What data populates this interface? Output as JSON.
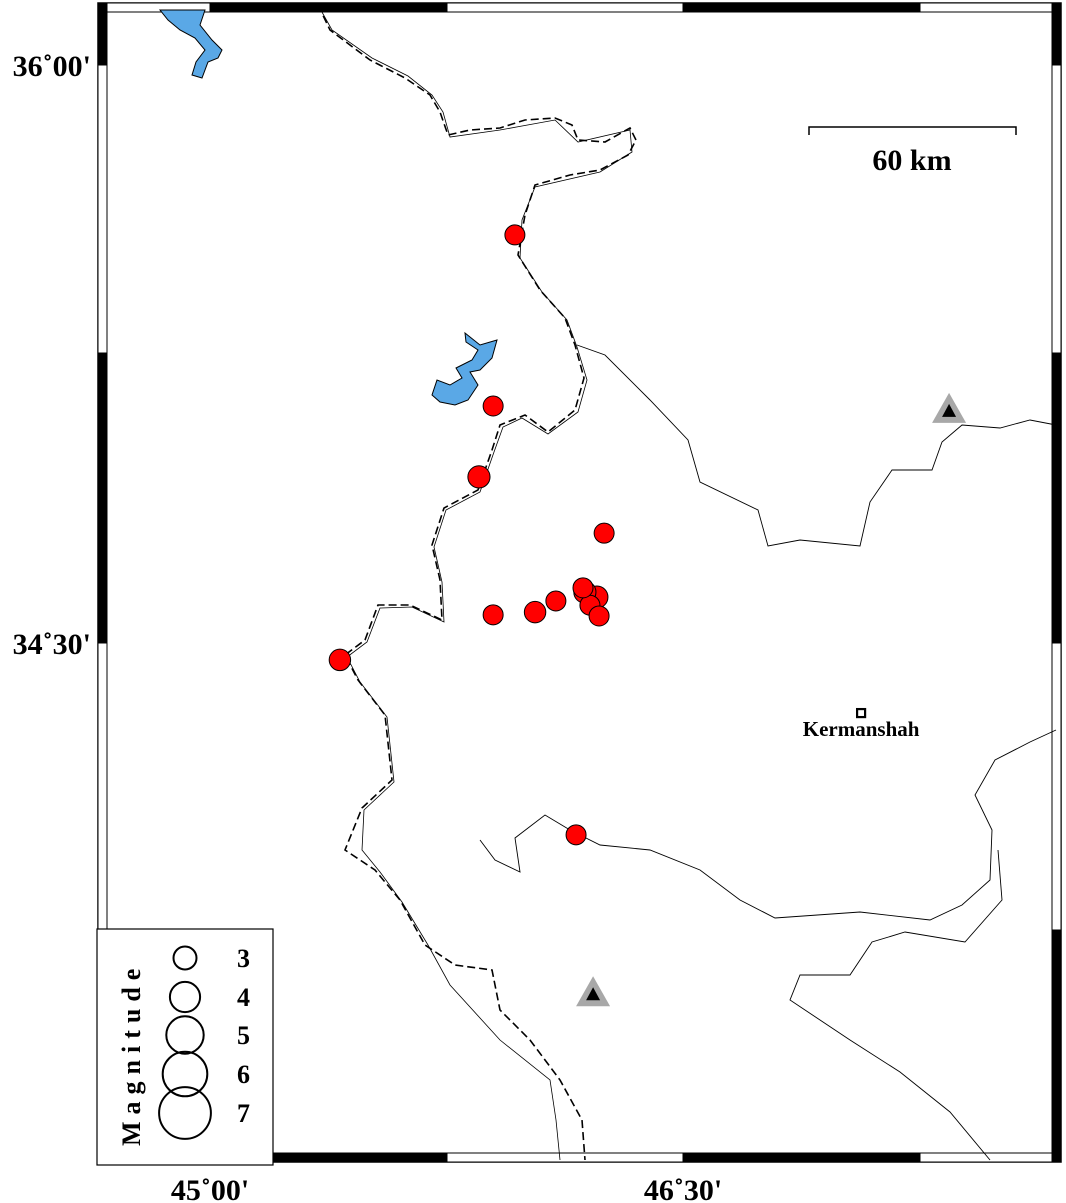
{
  "map": {
    "lon_ticks": [
      {
        "value": 45.0,
        "label": "45˚00'"
      },
      {
        "value": 46.5,
        "label": "46˚30'"
      }
    ],
    "lat_ticks": [
      {
        "value": 36.0,
        "label": "36˚00'"
      },
      {
        "value": 34.5,
        "label": "34˚30'"
      }
    ],
    "scale_bar": {
      "label": "60 km",
      "length_km": 60
    },
    "colors": {
      "earthquake": "#ff0000",
      "water": "#5aa8e6",
      "station": "#a8a8a8",
      "border": "#000000"
    },
    "city": {
      "name": "Kermanshah",
      "lon": 47.065,
      "lat": 34.318
    },
    "stations": [
      {
        "lon": 47.344,
        "lat": 35.105
      },
      {
        "lon": 46.215,
        "lat": 33.591
      }
    ],
    "earthquakes": [
      {
        "lon": 45.967,
        "lat": 35.559,
        "mag": 3.0
      },
      {
        "lon": 45.898,
        "lat": 35.115,
        "mag": 3.0
      },
      {
        "lon": 45.853,
        "lat": 34.931,
        "mag": 3.3
      },
      {
        "lon": 46.25,
        "lat": 34.785,
        "mag": 3.0
      },
      {
        "lon": 45.898,
        "lat": 34.573,
        "mag": 3.0
      },
      {
        "lon": 46.031,
        "lat": 34.58,
        "mag": 3.2
      },
      {
        "lon": 46.097,
        "lat": 34.609,
        "mag": 3.0
      },
      {
        "lon": 46.227,
        "lat": 34.619,
        "mag": 3.3
      },
      {
        "lon": 46.189,
        "lat": 34.632,
        "mag": 3.3
      },
      {
        "lon": 46.205,
        "lat": 34.598,
        "mag": 3.0
      },
      {
        "lon": 46.234,
        "lat": 34.57,
        "mag": 3.0
      },
      {
        "lon": 46.183,
        "lat": 34.643,
        "mag": 3.0
      },
      {
        "lon": 45.412,
        "lat": 34.456,
        "mag": 3.2
      },
      {
        "lon": 46.161,
        "lat": 34.002,
        "mag": 3.0
      }
    ]
  },
  "legend": {
    "title": "Magnitude",
    "entries": [
      {
        "mag": 3,
        "label": "3"
      },
      {
        "mag": 4,
        "label": "4"
      },
      {
        "mag": 5,
        "label": "5"
      },
      {
        "mag": 6,
        "label": "6"
      },
      {
        "mag": 7,
        "label": "7"
      }
    ]
  }
}
